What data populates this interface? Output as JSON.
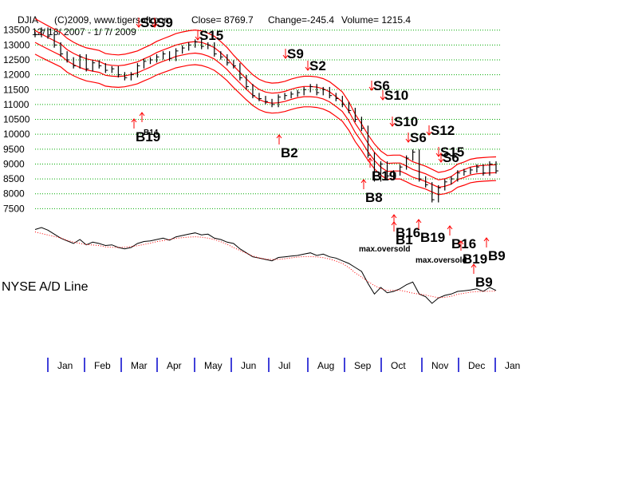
{
  "header": {
    "symbol": "DJIA",
    "copyright_site": "(C)2009, www.tigersoft.com",
    "close_text": "Close=  8769.7",
    "change_text": "Change=-245.4",
    "volume_text": "Volume= 1215.4",
    "date_range": "12/ 18/ 2007 - 1/ 7/ 2009"
  },
  "ad_line_label": "NYSE A/D Line",
  "colors": {
    "price": "#000000",
    "bands": "#ff0000",
    "gridline": "#00aa00",
    "signal_arrow": "#ff0000",
    "ad_line": "#000000",
    "ad_ma": "#ff0000",
    "month_tick": "#0000cc"
  },
  "chart_data": {
    "type": "line",
    "ylim": [
      7000,
      13600
    ],
    "yticks": [
      "13500",
      "13000",
      "12500",
      "12000",
      "11500",
      "11000",
      "10500",
      "10000",
      "9500",
      "9000",
      "8500",
      "8000",
      "7500"
    ],
    "months": [
      "Jan",
      "Feb",
      "Mar",
      "Apr",
      "May",
      "Jun",
      "Jul",
      "Aug",
      "Sep",
      "Oct",
      "Nov",
      "Dec",
      "Jan"
    ],
    "grid": true,
    "series": [
      {
        "values": [
          13350,
          13500,
          13300,
          13000,
          12700,
          12500,
          12300,
          12600,
          12200,
          12400,
          12300,
          12150,
          12200,
          12000,
          11900,
          12000,
          12300,
          12450,
          12500,
          12600,
          12700,
          12550,
          12800,
          12900,
          13000,
          13100,
          12950,
          13000,
          12700,
          12600,
          12400,
          12300,
          11900,
          11600,
          11300,
          11200,
          11100,
          11000,
          11250,
          11300,
          11350,
          11400,
          11500,
          11600,
          11400,
          11500,
          11300,
          11200,
          11000,
          10800,
          10500,
          10200,
          9300,
          8500,
          9000,
          8600,
          8700,
          8900,
          9200,
          9400,
          8500,
          8300,
          7800,
          8200,
          8400,
          8500,
          8700,
          8750,
          8800,
          8900,
          8700,
          9000,
          8769.7
        ]
      }
    ],
    "signals": [
      {
        "label": "S9",
        "kind": "sell"
      },
      {
        "label": "S9",
        "kind": "sell"
      },
      {
        "label": "S15",
        "kind": "sell"
      },
      {
        "label": "S9",
        "kind": "sell"
      },
      {
        "label": "S2",
        "kind": "sell"
      },
      {
        "label": "S6",
        "kind": "sell"
      },
      {
        "label": "S10",
        "kind": "sell"
      },
      {
        "label": "S10",
        "kind": "sell"
      },
      {
        "label": "S6",
        "kind": "sell"
      },
      {
        "label": "S12",
        "kind": "sell"
      },
      {
        "label": "S15",
        "kind": "sell"
      },
      {
        "label": "S6",
        "kind": "sell"
      },
      {
        "label": "B19",
        "kind": "buy"
      },
      {
        "label": "B14",
        "kind": "buy"
      },
      {
        "label": "B2",
        "kind": "buy"
      },
      {
        "label": "B19",
        "kind": "buy"
      },
      {
        "label": "B8",
        "kind": "buy"
      },
      {
        "label": "B1",
        "kind": "buy"
      },
      {
        "label": "B16",
        "kind": "buy"
      },
      {
        "label": "B19",
        "kind": "buy"
      },
      {
        "label": "B16",
        "kind": "buy"
      },
      {
        "label": "B19",
        "kind": "buy"
      },
      {
        "label": "B9",
        "kind": "buy"
      },
      {
        "label": "B9",
        "kind": "buy"
      }
    ],
    "annotations": [
      "max.oversold",
      "max.oversold"
    ]
  }
}
